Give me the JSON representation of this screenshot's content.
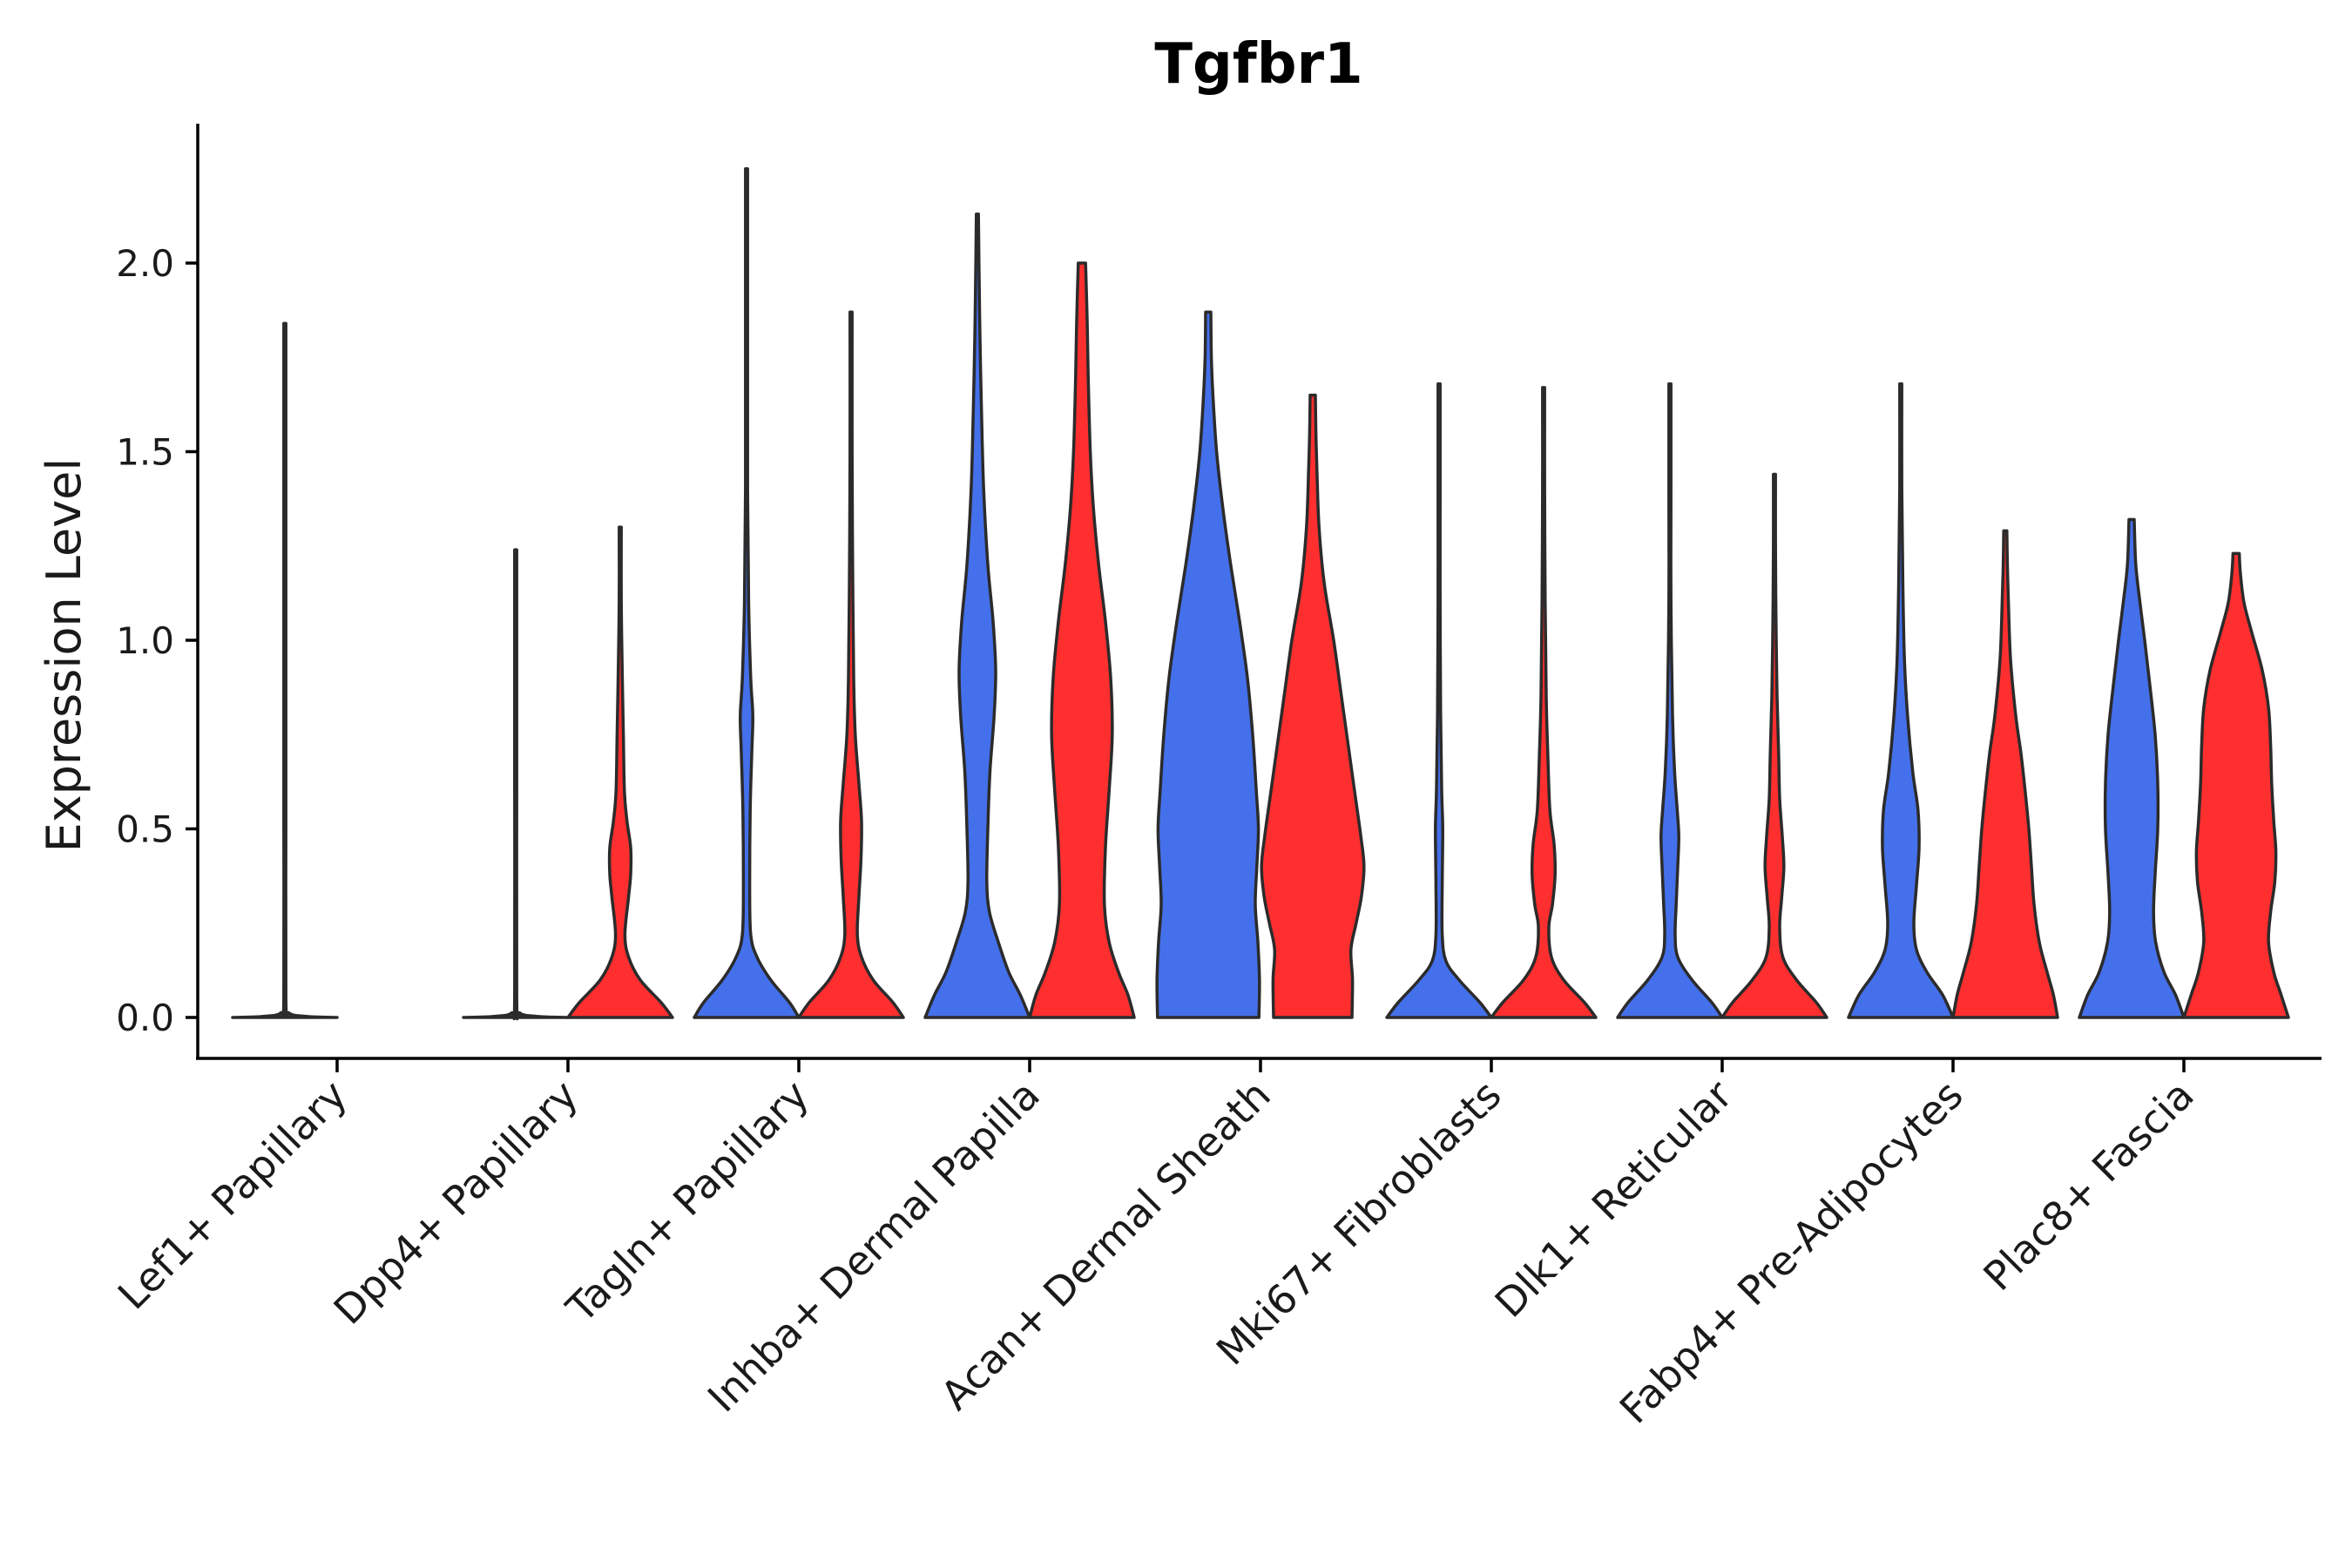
{
  "chart_data": {
    "type": "violin",
    "title": "Tgfbr1",
    "xlabel": "",
    "ylabel": "Expression Level",
    "ylim": [
      -0.11,
      2.37
    ],
    "yticks": [
      0.0,
      0.5,
      1.0,
      1.5,
      2.0
    ],
    "ytick_labels": [
      "0.0",
      "0.5",
      "1.0",
      "1.5",
      "2.0"
    ],
    "colors": {
      "group_a": "#4570EB",
      "group_b": "#FF2F2F",
      "outline": "#2b2b2b",
      "axis": "#000000"
    },
    "categories": [
      "Lef1+ Papillary",
      "Dpp4+ Papillary",
      "Tagln+ Papillary",
      "Inhba+ Dermal Papilla",
      "Acan+ Dermal Sheath",
      "Mki67+ Fibroblasts",
      "Dlk1+ Reticular",
      "Fabp4+ Pre-Adipocytes",
      "Plac8+ Fascia"
    ],
    "series": [
      {
        "name": "group_a",
        "color": "#4570EB",
        "max": [
          1.84,
          1.24,
          2.25,
          2.13,
          1.87,
          1.68,
          1.68,
          1.68,
          1.32
        ]
      },
      {
        "name": "group_b",
        "color": "#FF2F2F",
        "max": [
          null,
          1.3,
          1.87,
          2.0,
          1.65,
          1.67,
          1.44,
          1.29,
          1.23
        ]
      }
    ],
    "violins": [
      {
        "category": "Lef1+ Papillary",
        "group": "group_a",
        "color": "#3a3a3a",
        "profile": [
          [
            0,
            1
          ],
          [
            0.003,
            0.4
          ],
          [
            0.012,
            0.08
          ],
          [
            0.05,
            0.008
          ],
          [
            0.5,
            0.004
          ],
          [
            1.0,
            0.004
          ],
          [
            1.84,
            0.004
          ]
        ]
      },
      {
        "category": "Dpp4+ Papillary",
        "group": "group_a",
        "color": "#3a3a3a",
        "profile": [
          [
            0,
            1
          ],
          [
            0.003,
            0.4
          ],
          [
            0.012,
            0.08
          ],
          [
            0.05,
            0.008
          ],
          [
            0.6,
            0.004
          ],
          [
            1.24,
            0.004
          ]
        ]
      },
      {
        "category": "Dpp4+ Papillary",
        "group": "group_b",
        "color": "#FF2F2F",
        "profile": [
          [
            0,
            1
          ],
          [
            0.04,
            0.78
          ],
          [
            0.1,
            0.38
          ],
          [
            0.16,
            0.16
          ],
          [
            0.22,
            0.09
          ],
          [
            0.32,
            0.16
          ],
          [
            0.38,
            0.2
          ],
          [
            0.45,
            0.2
          ],
          [
            0.52,
            0.13
          ],
          [
            0.6,
            0.08
          ],
          [
            0.75,
            0.06
          ],
          [
            0.9,
            0.04
          ],
          [
            1.1,
            0.02
          ],
          [
            1.3,
            0.01
          ]
        ]
      },
      {
        "category": "Tagln+ Papillary",
        "group": "group_a",
        "color": "#4570EB",
        "profile": [
          [
            0,
            1
          ],
          [
            0.04,
            0.82
          ],
          [
            0.1,
            0.46
          ],
          [
            0.16,
            0.2
          ],
          [
            0.22,
            0.08
          ],
          [
            0.35,
            0.06
          ],
          [
            0.55,
            0.07
          ],
          [
            0.7,
            0.1
          ],
          [
            0.8,
            0.12
          ],
          [
            0.9,
            0.08
          ],
          [
            1.1,
            0.04
          ],
          [
            1.4,
            0.02
          ],
          [
            1.8,
            0.012
          ],
          [
            2.25,
            0.008
          ]
        ]
      },
      {
        "category": "Tagln+ Papillary",
        "group": "group_b",
        "color": "#FF2F2F",
        "profile": [
          [
            0,
            1
          ],
          [
            0.04,
            0.8
          ],
          [
            0.1,
            0.42
          ],
          [
            0.16,
            0.2
          ],
          [
            0.22,
            0.12
          ],
          [
            0.32,
            0.15
          ],
          [
            0.42,
            0.19
          ],
          [
            0.52,
            0.2
          ],
          [
            0.62,
            0.15
          ],
          [
            0.75,
            0.08
          ],
          [
            0.9,
            0.05
          ],
          [
            1.2,
            0.03
          ],
          [
            1.5,
            0.015
          ],
          [
            1.87,
            0.01
          ]
        ]
      },
      {
        "category": "Inhba+ Dermal Papilla",
        "group": "group_a",
        "color": "#4570EB",
        "profile": [
          [
            0,
            1
          ],
          [
            0.06,
            0.82
          ],
          [
            0.12,
            0.6
          ],
          [
            0.2,
            0.4
          ],
          [
            0.28,
            0.23
          ],
          [
            0.36,
            0.18
          ],
          [
            0.5,
            0.2
          ],
          [
            0.65,
            0.24
          ],
          [
            0.8,
            0.32
          ],
          [
            0.92,
            0.35
          ],
          [
            1.05,
            0.3
          ],
          [
            1.2,
            0.2
          ],
          [
            1.4,
            0.12
          ],
          [
            1.6,
            0.08
          ],
          [
            1.8,
            0.05
          ],
          [
            2.0,
            0.03
          ],
          [
            2.13,
            0.02
          ]
        ]
      },
      {
        "category": "Inhba+ Dermal Papilla",
        "group": "group_b",
        "color": "#FF2F2F",
        "profile": [
          [
            0,
            1
          ],
          [
            0.06,
            0.88
          ],
          [
            0.12,
            0.7
          ],
          [
            0.2,
            0.52
          ],
          [
            0.3,
            0.43
          ],
          [
            0.45,
            0.45
          ],
          [
            0.6,
            0.52
          ],
          [
            0.75,
            0.58
          ],
          [
            0.9,
            0.55
          ],
          [
            1.05,
            0.45
          ],
          [
            1.2,
            0.32
          ],
          [
            1.35,
            0.22
          ],
          [
            1.5,
            0.16
          ],
          [
            1.7,
            0.12
          ],
          [
            1.85,
            0.1
          ],
          [
            2.0,
            0.07
          ]
        ]
      },
      {
        "category": "Acan+ Dermal Sheath",
        "group": "group_a",
        "color": "#4570EB",
        "profile": [
          [
            0,
            0.97
          ],
          [
            0.1,
            0.98
          ],
          [
            0.2,
            0.95
          ],
          [
            0.3,
            0.9
          ],
          [
            0.4,
            0.93
          ],
          [
            0.5,
            0.96
          ],
          [
            0.6,
            0.92
          ],
          [
            0.75,
            0.85
          ],
          [
            0.9,
            0.75
          ],
          [
            1.05,
            0.6
          ],
          [
            1.2,
            0.43
          ],
          [
            1.35,
            0.28
          ],
          [
            1.5,
            0.16
          ],
          [
            1.65,
            0.09
          ],
          [
            1.75,
            0.06
          ],
          [
            1.87,
            0.05
          ]
        ]
      },
      {
        "category": "Acan+ Dermal Sheath",
        "group": "group_b",
        "color": "#FF2F2F",
        "profile": [
          [
            0,
            0.75
          ],
          [
            0.1,
            0.76
          ],
          [
            0.18,
            0.73
          ],
          [
            0.25,
            0.83
          ],
          [
            0.32,
            0.93
          ],
          [
            0.4,
            0.98
          ],
          [
            0.48,
            0.92
          ],
          [
            0.58,
            0.82
          ],
          [
            0.7,
            0.7
          ],
          [
            0.85,
            0.55
          ],
          [
            1.0,
            0.4
          ],
          [
            1.15,
            0.22
          ],
          [
            1.3,
            0.12
          ],
          [
            1.45,
            0.08
          ],
          [
            1.55,
            0.06
          ],
          [
            1.65,
            0.05
          ]
        ]
      },
      {
        "category": "Mki67+ Fibroblasts",
        "group": "group_a",
        "color": "#4570EB",
        "profile": [
          [
            0,
            1
          ],
          [
            0.04,
            0.78
          ],
          [
            0.1,
            0.38
          ],
          [
            0.15,
            0.13
          ],
          [
            0.22,
            0.06
          ],
          [
            0.35,
            0.06
          ],
          [
            0.5,
            0.07
          ],
          [
            0.6,
            0.05
          ],
          [
            0.8,
            0.03
          ],
          [
            1.1,
            0.015
          ],
          [
            1.4,
            0.01
          ],
          [
            1.68,
            0.008
          ]
        ]
      },
      {
        "category": "Mki67+ Fibroblasts",
        "group": "group_b",
        "color": "#FF2F2F",
        "profile": [
          [
            0,
            1
          ],
          [
            0.04,
            0.78
          ],
          [
            0.1,
            0.38
          ],
          [
            0.16,
            0.15
          ],
          [
            0.24,
            0.1
          ],
          [
            0.3,
            0.17
          ],
          [
            0.38,
            0.22
          ],
          [
            0.46,
            0.2
          ],
          [
            0.55,
            0.12
          ],
          [
            0.7,
            0.08
          ],
          [
            0.85,
            0.05
          ],
          [
            1.1,
            0.03
          ],
          [
            1.4,
            0.015
          ],
          [
            1.67,
            0.01
          ]
        ]
      },
      {
        "category": "Dlk1+ Reticular",
        "group": "group_a",
        "color": "#4570EB",
        "profile": [
          [
            0,
            1
          ],
          [
            0.04,
            0.8
          ],
          [
            0.1,
            0.42
          ],
          [
            0.16,
            0.15
          ],
          [
            0.22,
            0.1
          ],
          [
            0.3,
            0.12
          ],
          [
            0.4,
            0.15
          ],
          [
            0.48,
            0.17
          ],
          [
            0.55,
            0.14
          ],
          [
            0.65,
            0.09
          ],
          [
            0.8,
            0.05
          ],
          [
            1.1,
            0.02
          ],
          [
            1.4,
            0.012
          ],
          [
            1.68,
            0.008
          ]
        ]
      },
      {
        "category": "Dlk1+ Reticular",
        "group": "group_b",
        "color": "#FF2F2F",
        "profile": [
          [
            0,
            1
          ],
          [
            0.04,
            0.8
          ],
          [
            0.1,
            0.42
          ],
          [
            0.16,
            0.16
          ],
          [
            0.24,
            0.1
          ],
          [
            0.32,
            0.14
          ],
          [
            0.4,
            0.18
          ],
          [
            0.48,
            0.15
          ],
          [
            0.58,
            0.1
          ],
          [
            0.7,
            0.08
          ],
          [
            0.85,
            0.05
          ],
          [
            1.05,
            0.03
          ],
          [
            1.25,
            0.015
          ],
          [
            1.44,
            0.01
          ]
        ]
      },
      {
        "category": "Fabp4+ Pre-Adipocytes",
        "group": "group_a",
        "color": "#4570EB",
        "profile": [
          [
            0,
            1
          ],
          [
            0.06,
            0.8
          ],
          [
            0.12,
            0.5
          ],
          [
            0.18,
            0.3
          ],
          [
            0.25,
            0.25
          ],
          [
            0.35,
            0.3
          ],
          [
            0.45,
            0.35
          ],
          [
            0.55,
            0.33
          ],
          [
            0.65,
            0.23
          ],
          [
            0.8,
            0.13
          ],
          [
            0.95,
            0.07
          ],
          [
            1.15,
            0.04
          ],
          [
            1.4,
            0.02
          ],
          [
            1.68,
            0.012
          ]
        ]
      },
      {
        "category": "Fabp4+ Pre-Adipocytes",
        "group": "group_b",
        "color": "#FF2F2F",
        "profile": [
          [
            0,
            1
          ],
          [
            0.06,
            0.92
          ],
          [
            0.12,
            0.8
          ],
          [
            0.2,
            0.65
          ],
          [
            0.3,
            0.55
          ],
          [
            0.4,
            0.5
          ],
          [
            0.5,
            0.45
          ],
          [
            0.6,
            0.38
          ],
          [
            0.7,
            0.3
          ],
          [
            0.8,
            0.2
          ],
          [
            0.95,
            0.1
          ],
          [
            1.1,
            0.06
          ],
          [
            1.2,
            0.04
          ],
          [
            1.29,
            0.03
          ]
        ]
      },
      {
        "category": "Plac8+ Fascia",
        "group": "group_a",
        "color": "#4570EB",
        "profile": [
          [
            0,
            1
          ],
          [
            0.06,
            0.84
          ],
          [
            0.12,
            0.62
          ],
          [
            0.2,
            0.46
          ],
          [
            0.28,
            0.42
          ],
          [
            0.38,
            0.45
          ],
          [
            0.5,
            0.5
          ],
          [
            0.62,
            0.5
          ],
          [
            0.75,
            0.45
          ],
          [
            0.88,
            0.35
          ],
          [
            1.0,
            0.25
          ],
          [
            1.1,
            0.16
          ],
          [
            1.2,
            0.08
          ],
          [
            1.32,
            0.05
          ]
        ]
      },
      {
        "category": "Plac8+ Fascia",
        "group": "group_b",
        "color": "#FF2F2F",
        "profile": [
          [
            0,
            1
          ],
          [
            0.06,
            0.86
          ],
          [
            0.12,
            0.72
          ],
          [
            0.2,
            0.62
          ],
          [
            0.28,
            0.66
          ],
          [
            0.36,
            0.74
          ],
          [
            0.44,
            0.76
          ],
          [
            0.52,
            0.72
          ],
          [
            0.62,
            0.68
          ],
          [
            0.72,
            0.66
          ],
          [
            0.82,
            0.62
          ],
          [
            0.92,
            0.5
          ],
          [
            1.02,
            0.3
          ],
          [
            1.1,
            0.15
          ],
          [
            1.18,
            0.08
          ],
          [
            1.23,
            0.06
          ]
        ]
      }
    ]
  }
}
